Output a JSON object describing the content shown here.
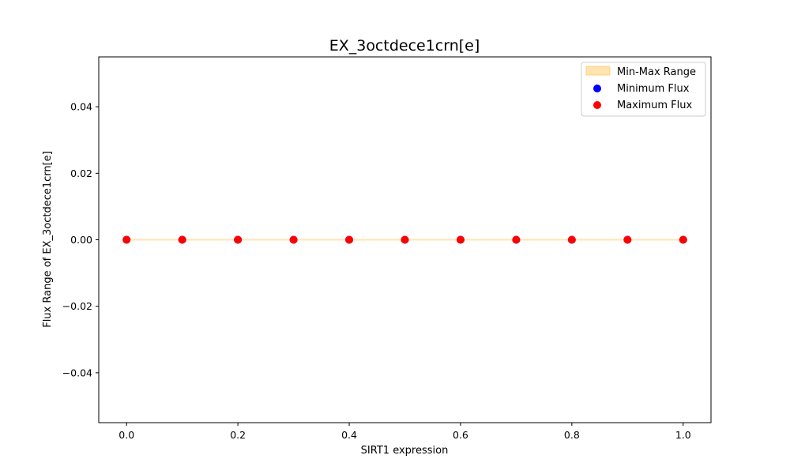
{
  "chart_data": {
    "type": "scatter",
    "title": "EX_3octdece1crn[e]",
    "xlabel": "SIRT1 expression",
    "ylabel": "Flux Range of EX_3octdece1crn[e]",
    "xlim": [
      -0.05,
      1.05
    ],
    "ylim": [
      -0.055,
      0.055
    ],
    "x_ticks": [
      "0.0",
      "0.2",
      "0.4",
      "0.6",
      "0.8",
      "1.0"
    ],
    "y_ticks": [
      "−0.04",
      "−0.02",
      "0.00",
      "0.02",
      "0.04"
    ],
    "x_tick_values": [
      0.0,
      0.2,
      0.4,
      0.6,
      0.8,
      1.0
    ],
    "y_tick_values": [
      -0.04,
      -0.02,
      0.0,
      0.02,
      0.04
    ],
    "grid": false,
    "legend_position": "top-right",
    "x": [
      0.0,
      0.1,
      0.2,
      0.3,
      0.4,
      0.5,
      0.6,
      0.7,
      0.8,
      0.9,
      1.0
    ],
    "series": [
      {
        "name": "Min-Max Range",
        "kind": "fill_between",
        "lower": [
          0,
          0,
          0,
          0,
          0,
          0,
          0,
          0,
          0,
          0,
          0
        ],
        "upper": [
          0,
          0,
          0,
          0,
          0,
          0,
          0,
          0,
          0,
          0,
          0
        ],
        "color": "#ffa500"
      },
      {
        "name": "Minimum Flux",
        "kind": "scatter",
        "values": [
          0,
          0,
          0,
          0,
          0,
          0,
          0,
          0,
          0,
          0,
          0
        ],
        "color": "#0000ff"
      },
      {
        "name": "Maximum Flux",
        "kind": "scatter",
        "values": [
          0,
          0,
          0,
          0,
          0,
          0,
          0,
          0,
          0,
          0,
          0
        ],
        "color": "#ff0000"
      }
    ]
  }
}
